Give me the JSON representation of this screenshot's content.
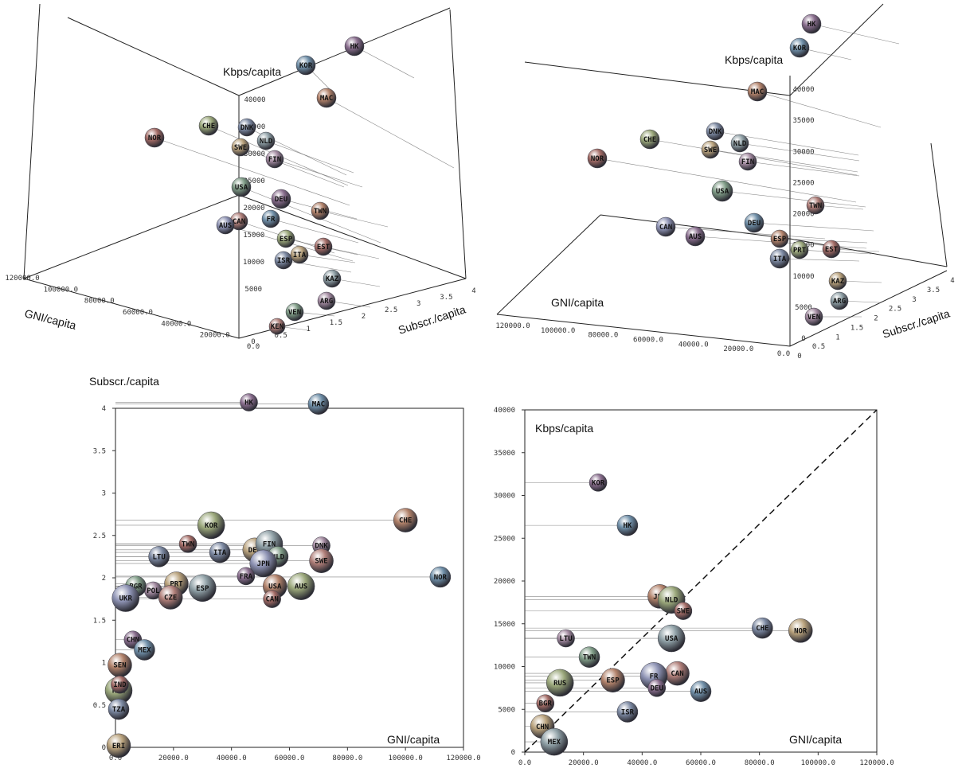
{
  "chart_data": [
    {
      "type": "scatter",
      "view": "3d-perspective",
      "xlabel": "GNI/capita",
      "ylabel": "Subscr./capita",
      "zlabel": "Kbps/capita",
      "x_ticks": [
        "0.0",
        "20000.0",
        "40000.0",
        "60000.0",
        "80000.0",
        "100000.0",
        "120000.0"
      ],
      "y_ticks": [
        "0",
        "0.5",
        "1",
        "1.5",
        "2",
        "2.5",
        "3",
        "3.5",
        "4"
      ],
      "z_ticks": [
        "5000",
        "10000",
        "15000",
        "20000",
        "25000",
        "30000",
        "35000",
        "40000"
      ],
      "points": [
        {
          "label": "HK"
        },
        {
          "label": "KOR"
        },
        {
          "label": "MAC"
        },
        {
          "label": "CHE"
        },
        {
          "label": "NOR"
        },
        {
          "label": "DNK"
        },
        {
          "label": "SWE"
        },
        {
          "label": "NLD"
        },
        {
          "label": "FIN"
        },
        {
          "label": "USA"
        },
        {
          "label": "CAN"
        },
        {
          "label": "AUS"
        },
        {
          "label": "DEU"
        },
        {
          "label": "FR"
        },
        {
          "label": "TWN"
        },
        {
          "label": "ESP"
        },
        {
          "label": "EST"
        },
        {
          "label": "ISR"
        },
        {
          "label": "ITA"
        },
        {
          "label": "KAZ"
        },
        {
          "label": "ARG"
        },
        {
          "label": "VEN"
        },
        {
          "label": "KEN"
        }
      ]
    },
    {
      "type": "scatter",
      "view": "3d-perspective",
      "xlabel": "GNI/capita",
      "ylabel": "Subscr./capita",
      "zlabel": "Kbps/capita",
      "x_ticks": [
        "0.0",
        "20000.0",
        "40000.0",
        "60000.0",
        "80000.0",
        "100000.0",
        "120000.0"
      ],
      "y_ticks": [
        "0",
        "0.5",
        "1",
        "1.5",
        "2",
        "2.5",
        "3",
        "3.5",
        "4"
      ],
      "z_ticks": [
        "0",
        "5000",
        "10000",
        "15000",
        "20000",
        "25000",
        "30000",
        "35000",
        "40000"
      ],
      "points": [
        {
          "label": "HK"
        },
        {
          "label": "KOR"
        },
        {
          "label": "MAC"
        },
        {
          "label": "CHE"
        },
        {
          "label": "NOR"
        },
        {
          "label": "DNK"
        },
        {
          "label": "SWE"
        },
        {
          "label": "NLD"
        },
        {
          "label": "FIN"
        },
        {
          "label": "USA"
        },
        {
          "label": "TWN"
        },
        {
          "label": "CAN"
        },
        {
          "label": "AUS"
        },
        {
          "label": "DEU"
        },
        {
          "label": "ESP"
        },
        {
          "label": "PRT"
        },
        {
          "label": "EST"
        },
        {
          "label": "ITA"
        },
        {
          "label": "KAZ"
        },
        {
          "label": "ARG"
        },
        {
          "label": "VEN"
        }
      ]
    },
    {
      "type": "scatter",
      "view": "2d",
      "xlabel": "GNI/capita",
      "ylabel": "Subscr./capita",
      "xlim": [
        0,
        120000
      ],
      "ylim": [
        0,
        4
      ],
      "x_ticks": [
        "0.0",
        "20000.0",
        "40000.0",
        "60000.0",
        "80000.0",
        "100000.0",
        "120000.0"
      ],
      "y_ticks": [
        "0",
        "0.5",
        "1",
        "1.5",
        "2",
        "2.5",
        "3",
        "3.5",
        "4"
      ],
      "points": [
        {
          "label": "HK",
          "x": 46000,
          "y": 4.07
        },
        {
          "label": "MAC",
          "x": 70000,
          "y": 4.05
        },
        {
          "label": "CHE",
          "x": 100000,
          "y": 2.68
        },
        {
          "label": "KOR",
          "x": 33000,
          "y": 2.62
        },
        {
          "label": "TWN",
          "x": 25000,
          "y": 2.4
        },
        {
          "label": "ITA",
          "x": 36000,
          "y": 2.3
        },
        {
          "label": "DEU",
          "x": 48000,
          "y": 2.33
        },
        {
          "label": "FIN",
          "x": 53000,
          "y": 2.4
        },
        {
          "label": "DNK",
          "x": 71000,
          "y": 2.38
        },
        {
          "label": "NLD",
          "x": 56000,
          "y": 2.25
        },
        {
          "label": "SWE",
          "x": 71000,
          "y": 2.2
        },
        {
          "label": "JPN",
          "x": 51000,
          "y": 2.17
        },
        {
          "label": "FRA",
          "x": 45000,
          "y": 2.02
        },
        {
          "label": "NOR",
          "x": 112000,
          "y": 2.01
        },
        {
          "label": "USA",
          "x": 55000,
          "y": 1.9
        },
        {
          "label": "AUS",
          "x": 64000,
          "y": 1.9
        },
        {
          "label": "CAN",
          "x": 54000,
          "y": 1.75
        },
        {
          "label": "LTU",
          "x": 15000,
          "y": 2.25
        },
        {
          "label": "PRT",
          "x": 21000,
          "y": 1.93
        },
        {
          "label": "ESP",
          "x": 30000,
          "y": 1.88
        },
        {
          "label": "POL",
          "x": 13000,
          "y": 1.85
        },
        {
          "label": "BGR",
          "x": 7000,
          "y": 1.9
        },
        {
          "label": "CZE",
          "x": 19000,
          "y": 1.77
        },
        {
          "label": "UKR",
          "x": 3500,
          "y": 1.76
        },
        {
          "label": "CHN",
          "x": 6000,
          "y": 1.27
        },
        {
          "label": "MEX",
          "x": 10000,
          "y": 1.15
        },
        {
          "label": "SEN",
          "x": 1500,
          "y": 0.97
        },
        {
          "label": "KEN",
          "x": 1000,
          "y": 0.67
        },
        {
          "label": "IND",
          "x": 1500,
          "y": 0.74
        },
        {
          "label": "TZA",
          "x": 800,
          "y": 0.45
        },
        {
          "label": "ERI",
          "x": 500,
          "y": 0.02
        }
      ]
    },
    {
      "type": "scatter",
      "view": "2d",
      "xlabel": "GNI/capita",
      "ylabel": "Kbps/capita",
      "xlim": [
        0,
        120000
      ],
      "ylim": [
        0,
        40000
      ],
      "x_ticks": [
        "0.0",
        "20000.0",
        "40000.0",
        "60000.0",
        "80000.0",
        "100000.0",
        "120000.0"
      ],
      "y_ticks": [
        "0",
        "5000",
        "10000",
        "15000",
        "20000",
        "25000",
        "30000",
        "35000",
        "40000"
      ],
      "diagonal": true,
      "points": [
        {
          "label": "KOR",
          "x": 25000,
          "y": 31500
        },
        {
          "label": "HK",
          "x": 35000,
          "y": 26500
        },
        {
          "label": "JPN",
          "x": 46000,
          "y": 18200
        },
        {
          "label": "NLD",
          "x": 50000,
          "y": 17800
        },
        {
          "label": "SWE",
          "x": 54000,
          "y": 16500
        },
        {
          "label": "CHE",
          "x": 81000,
          "y": 14500
        },
        {
          "label": "NOR",
          "x": 94000,
          "y": 14200
        },
        {
          "label": "USA",
          "x": 50000,
          "y": 13300
        },
        {
          "label": "LTU",
          "x": 14000,
          "y": 13300
        },
        {
          "label": "TWN",
          "x": 22000,
          "y": 11100
        },
        {
          "label": "CAN",
          "x": 52000,
          "y": 9200
        },
        {
          "label": "FR",
          "x": 44000,
          "y": 8900
        },
        {
          "label": "DEU",
          "x": 45000,
          "y": 7500
        },
        {
          "label": "AUS",
          "x": 60000,
          "y": 7100
        },
        {
          "label": "ESP",
          "x": 30000,
          "y": 8400
        },
        {
          "label": "RUS",
          "x": 12000,
          "y": 8100
        },
        {
          "label": "BGR",
          "x": 7000,
          "y": 5700
        },
        {
          "label": "ISR",
          "x": 35000,
          "y": 4700
        },
        {
          "label": "CHN",
          "x": 6000,
          "y": 3000
        },
        {
          "label": "MEX",
          "x": 10000,
          "y": 1200
        }
      ]
    }
  ]
}
